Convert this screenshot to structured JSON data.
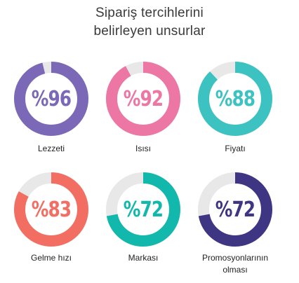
{
  "title": {
    "line1": "Sipariş tercihlerini",
    "line2": "belirleyen unsurlar"
  },
  "chart_data": {
    "type": "donut",
    "title": "Sipariş tercihlerini belirleyen unsurlar",
    "unit": "%",
    "max": 100,
    "items": [
      {
        "label": "Lezzeti",
        "value": 96,
        "display": "%96",
        "color": "#7b68b6"
      },
      {
        "label": "Isısı",
        "value": 92,
        "display": "%92",
        "color": "#ec76a4"
      },
      {
        "label": "Fiyatı",
        "value": 88,
        "display": "%88",
        "color": "#3dc2c2"
      },
      {
        "label": "Gelme hızı",
        "value": 83,
        "display": "%83",
        "color": "#f26e62"
      },
      {
        "label": "Markası",
        "value": 72,
        "display": "%72",
        "color": "#13b8ac"
      },
      {
        "label": "Promosyonlarının olması",
        "value": 72,
        "display": "%72",
        "color": "#3e3583",
        "label_lines": [
          "Promosyonlarının",
          "olması"
        ]
      }
    ],
    "track_color": "#e8e8e8"
  }
}
